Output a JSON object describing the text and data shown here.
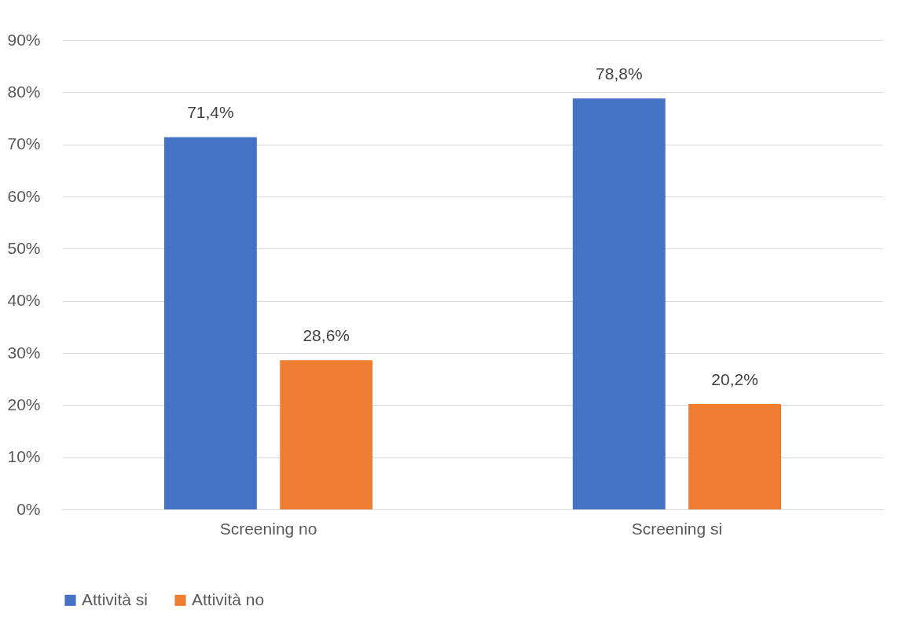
{
  "chart_data": {
    "type": "bar",
    "categories": [
      "Screening no",
      "Screening si"
    ],
    "series": [
      {
        "name": "Attività si",
        "color": "#4472c4",
        "values": [
          71.4,
          78.8
        ],
        "value_labels": [
          "71,4%",
          "78,8%"
        ]
      },
      {
        "name": "Attività no",
        "color": "#ed7d31",
        "values": [
          28.6,
          20.2
        ],
        "value_labels": [
          "28,6%",
          "20,2%"
        ]
      }
    ],
    "ylim": [
      0,
      90
    ],
    "yticks": [
      {
        "value": 0,
        "label": "0%"
      },
      {
        "value": 10,
        "label": "10%"
      },
      {
        "value": 20,
        "label": "20%"
      },
      {
        "value": 30,
        "label": "30%"
      },
      {
        "value": 40,
        "label": "40%"
      },
      {
        "value": 50,
        "label": "50%"
      },
      {
        "value": 60,
        "label": "60%"
      },
      {
        "value": 70,
        "label": "70%"
      },
      {
        "value": 80,
        "label": "80%"
      },
      {
        "value": 90,
        "label": "90%"
      }
    ],
    "grid": "y",
    "legend": "bottom"
  }
}
